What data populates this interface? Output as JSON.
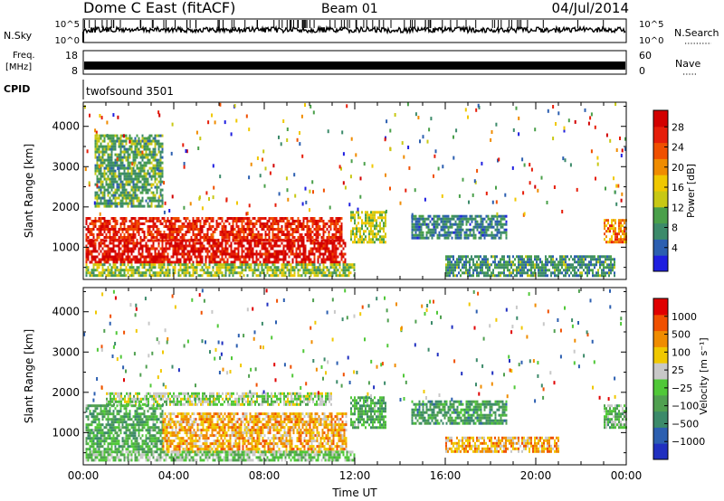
{
  "header": {
    "title": "Dome C East (fitACF)",
    "beam": "Beam 01",
    "date": "04/Jul/2014"
  },
  "strips": {
    "nsky_label": "N.Sky",
    "nsky_top": "10^5",
    "nsky_bottom": "10^0",
    "nsearch_label": "N.Search",
    "nsearch_top": "10^5",
    "nsearch_bottom": "10^0",
    "freq_label_1": "Freq.",
    "freq_label_2": "[MHz]",
    "freq_top": "18",
    "freq_bottom": "8",
    "nave_label": "Nave",
    "nave_top": "60",
    "nave_bottom": "0",
    "cpid_label": "CPID",
    "cpid_value": "twofsound 3501"
  },
  "chart_data": [
    {
      "type": "heatmap",
      "title": "",
      "quantity": "Power",
      "ylabel": "Slant Range [km]",
      "xlabel": "",
      "x_ticks": [
        "00:00",
        "04:00",
        "08:00",
        "12:00",
        "16:00",
        "20:00",
        "00:00"
      ],
      "y_ticks": [
        1000,
        2000,
        3000,
        4000
      ],
      "ylim": [
        200,
        4600
      ],
      "xlim_hours": [
        0,
        24
      ],
      "colorbar": {
        "label": "Power [dB]",
        "ticks": [
          "4",
          "8",
          "12",
          "16",
          "20",
          "24",
          "28"
        ],
        "colors": [
          "#1f1fe0",
          "#2c5fb0",
          "#3c8a6a",
          "#4aa04a",
          "#c8c814",
          "#f0c800",
          "#f08c00",
          "#f05000",
          "#e61e0a",
          "#d20000"
        ]
      },
      "regions": [
        {
          "t": [
            0.1,
            11.4
          ],
          "r": [
            1200,
            1750
          ],
          "level": 0.88
        },
        {
          "t": [
            0.1,
            11.6
          ],
          "r": [
            600,
            1200
          ],
          "level": 0.96
        },
        {
          "t": [
            0.1,
            12.0
          ],
          "r": [
            300,
            600
          ],
          "level": 0.4
        },
        {
          "t": [
            11.8,
            13.4
          ],
          "r": [
            1100,
            1900
          ],
          "level": 0.45
        },
        {
          "t": [
            14.5,
            18.7
          ],
          "r": [
            1200,
            1800
          ],
          "level": 0.2
        },
        {
          "t": [
            16.0,
            23.5
          ],
          "r": [
            300,
            800
          ],
          "level": 0.25
        },
        {
          "t": [
            23.0,
            24.0
          ],
          "r": [
            1100,
            1700
          ],
          "level": 0.7
        },
        {
          "t": [
            0.5,
            3.5
          ],
          "r": [
            2000,
            3800
          ],
          "level": 0.3
        }
      ]
    },
    {
      "type": "heatmap",
      "title": "",
      "quantity": "Velocity",
      "ylabel": "Slant Range [km]",
      "xlabel": "Time UT",
      "x_ticks": [
        "00:00",
        "04:00",
        "08:00",
        "12:00",
        "16:00",
        "20:00",
        "00:00"
      ],
      "y_ticks": [
        1000,
        2000,
        3000,
        4000
      ],
      "ylim": [
        200,
        4600
      ],
      "xlim_hours": [
        0,
        24
      ],
      "colorbar": {
        "label": "Velocity [m s⁻¹]",
        "ticks": [
          "1000",
          "500",
          "100",
          "25",
          "−25",
          "−100",
          "−500",
          "−1000"
        ],
        "colors": [
          "#2030c0",
          "#2c5fb0",
          "#3c8a6a",
          "#50a050",
          "#50c838",
          "#c8c8c8",
          "#f0c800",
          "#f08c00",
          "#f05000",
          "#e00000"
        ]
      },
      "regions": [
        {
          "t": [
            1.0,
            11.0
          ],
          "r": [
            1700,
            2000
          ],
          "level": 0.5
        },
        {
          "t": [
            0.1,
            3.5
          ],
          "r": [
            500,
            1700
          ],
          "level": 0.35
        },
        {
          "t": [
            3.5,
            11.6
          ],
          "r": [
            550,
            1500
          ],
          "level": 0.72
        },
        {
          "t": [
            0.1,
            12.0
          ],
          "r": [
            300,
            550
          ],
          "level": 0.45
        },
        {
          "t": [
            11.8,
            13.4
          ],
          "r": [
            1100,
            1900
          ],
          "level": 0.35
        },
        {
          "t": [
            14.5,
            18.7
          ],
          "r": [
            1200,
            1800
          ],
          "level": 0.3
        },
        {
          "t": [
            16.0,
            21.0
          ],
          "r": [
            500,
            900
          ],
          "level": 0.72
        },
        {
          "t": [
            23.0,
            24.0
          ],
          "r": [
            1100,
            1700
          ],
          "level": 0.4
        }
      ]
    }
  ]
}
